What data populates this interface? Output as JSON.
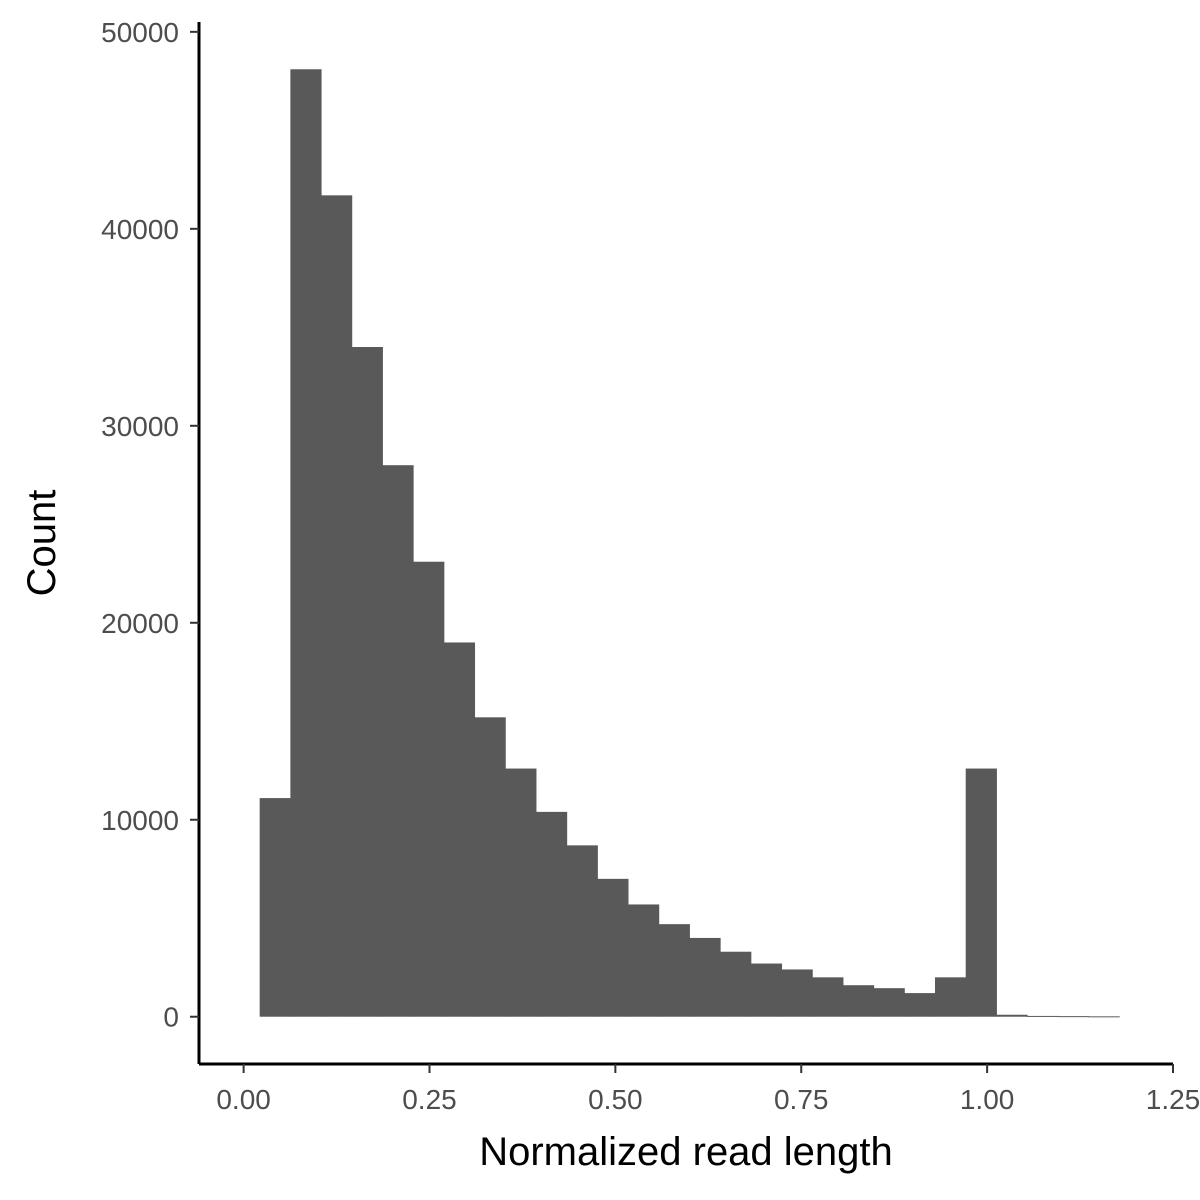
{
  "chart_data": {
    "type": "bar",
    "xlabel": "Normalized read length",
    "ylabel": "Count",
    "xlim": [
      -0.06,
      1.25
    ],
    "ylim": [
      -2400,
      50500
    ],
    "x_ticks": [
      0,
      0.25,
      0.5,
      0.75,
      1.0,
      1.25
    ],
    "x_tick_labels": [
      "0.00",
      "0.25",
      "0.50",
      "0.75",
      "1.00",
      "1.25"
    ],
    "y_ticks": [
      0,
      10000,
      20000,
      30000,
      40000,
      50000
    ],
    "y_tick_labels": [
      "0",
      "10000",
      "20000",
      "30000",
      "40000",
      "50000"
    ],
    "bin_edges": [
      0.0216,
      0.0629,
      0.1042,
      0.1454,
      0.1867,
      0.228,
      0.2693,
      0.3106,
      0.3519,
      0.3932,
      0.4345,
      0.4758,
      0.517,
      0.5583,
      0.5996,
      0.6409,
      0.6822,
      0.7235,
      0.7648,
      0.8061,
      0.8474,
      0.8886,
      0.9299,
      0.9712,
      1.0125,
      1.0538,
      1.0951,
      1.1364,
      1.1777
    ],
    "values": [
      11100,
      48100,
      41700,
      34000,
      28000,
      23100,
      19000,
      15200,
      12600,
      10400,
      8700,
      7000,
      5700,
      4700,
      4000,
      3300,
      2700,
      2400,
      2000,
      1600,
      1450,
      1200,
      2000,
      12600,
      100,
      40,
      30,
      20
    ],
    "grid": false,
    "bar_color": "#595959"
  }
}
